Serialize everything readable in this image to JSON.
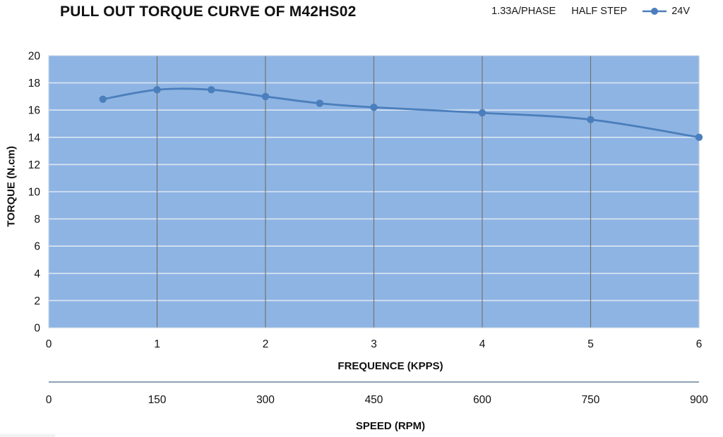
{
  "header": {
    "title": "PULL OUT TORQUE CURVE OF M42HS02",
    "legend": {
      "current_rating": "1.33A/PHASE",
      "step_mode": "HALF STEP",
      "series_label": "24V"
    }
  },
  "chart_data": {
    "type": "line",
    "title": "PULL OUT TORQUE CURVE OF M42HS02",
    "xlabel": "FREQUENCE (KPPS)",
    "ylabel": "TORQUE (N.cm)",
    "secondary_xlabel": "SPEED (RPM)",
    "xlim": [
      0,
      6
    ],
    "ylim": [
      0,
      20
    ],
    "x_ticks": [
      0,
      1,
      2,
      3,
      4,
      5,
      6
    ],
    "y_ticks": [
      0,
      2,
      4,
      6,
      8,
      10,
      12,
      14,
      16,
      18,
      20
    ],
    "secondary_x_ticks": [
      0,
      150,
      300,
      450,
      600,
      750,
      900
    ],
    "grid": {
      "horizontal": true,
      "vertical": true
    },
    "legend_position": "top-right",
    "series": [
      {
        "name": "24V",
        "x": [
          0.5,
          1,
          1.5,
          2,
          2.5,
          3,
          4,
          5,
          6
        ],
        "y": [
          16.8,
          17.5,
          17.5,
          17.0,
          16.5,
          16.2,
          15.8,
          15.3,
          14.0
        ]
      }
    ]
  },
  "colors": {
    "plot_background": "#8EB4E3",
    "horizontal_grid": "#DCE6F2",
    "vertical_grid": "#6F6F6F",
    "plot_border": "#C9D6EA",
    "series_24v": "#4B7EBC",
    "speed_axis_line": "#7F94AC",
    "tick_text": "#111111"
  }
}
